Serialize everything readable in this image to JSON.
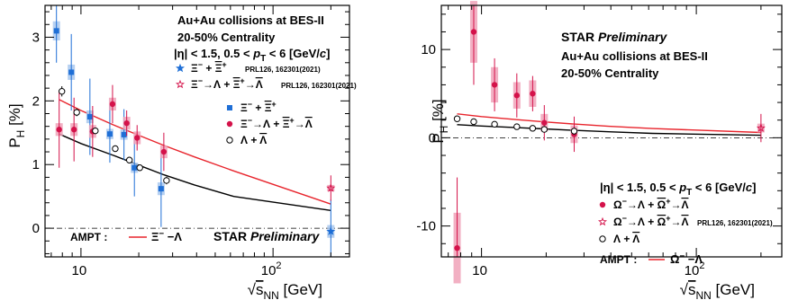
{
  "chart_data": [
    {
      "type": "scatter",
      "x_scale": "log",
      "xlim": [
        6.5,
        250
      ],
      "ylim": [
        -0.45,
        3.5
      ],
      "xlabel_pre": "√",
      "xlabel_s": "s",
      "xlabel_sub": "NN",
      "xlabel_unit": "[GeV]",
      "ylabel": "P",
      "ylabel_sub": "H",
      "ylabel_unit": "[%]",
      "x_ticks": [
        {
          "value": 10,
          "label": "10"
        },
        {
          "value": 100,
          "label": "10",
          "sup": "2"
        }
      ],
      "y_ticks": [
        0,
        1,
        2,
        3
      ],
      "zero_line": true,
      "header": {
        "line1": "Au+Au collisions at BES-II",
        "line2": "20-50% Centrality",
        "line3": "|η| < 1.5, 0.5 < pT < 6 [GeV/c]",
        "line3_parts": [
          "|η| < 1.5, 0.5 < ",
          "p",
          "T",
          " < 6 [GeV/",
          "c",
          "]"
        ]
      },
      "legend": [
        {
          "marker": "star-blue",
          "parts": [
            "Ξ",
            "−",
            " + ",
            "Ξ",
            "+"
          ],
          "ref": "PRL126, 162301(2021)"
        },
        {
          "marker": "star-red",
          "parts": [
            "Ξ",
            "−",
            "→Λ + ",
            "Ξ",
            "+",
            "→",
            "Λ"
          ],
          "ref": "PRL126, 162301(2021)"
        },
        {
          "marker": "square-blue",
          "parts": [
            "Ξ",
            "−",
            " + ",
            "Ξ",
            "+"
          ]
        },
        {
          "marker": "circle-red",
          "parts": [
            "Ξ",
            "−",
            "→Λ + ",
            "Ξ",
            "+",
            "→",
            "Λ"
          ]
        },
        {
          "marker": "circle-open",
          "parts": [
            "Λ + ",
            "Λ"
          ]
        }
      ],
      "ampt_label": "AMPT :",
      "ampt_legend": "Ξ− −Λ",
      "ampt_parts": [
        "Ξ",
        "−",
        " −Λ"
      ],
      "star_label": "STAR",
      "preliminary_label": "Preliminary",
      "series": [
        {
          "name": "Ξ− + Ξ̄+",
          "style": "square-blue",
          "x": [
            7.7,
            9.2,
            11.5,
            14.6,
            17.3,
            19.6,
            27
          ],
          "y": [
            3.1,
            2.45,
            1.75,
            1.48,
            1.47,
            0.95,
            0.62
          ],
          "err": [
            0.5,
            0.6,
            0.6,
            0.45,
            0.4,
            0.45,
            0.6
          ],
          "sys": [
            0.15,
            0.12,
            0.1,
            0.08,
            0.08,
            0.08,
            0.1
          ]
        },
        {
          "name": "Ξ−→Λ + Ξ̄+→Λ̄",
          "style": "circle-red",
          "x": [
            7.7,
            9.2,
            11.5,
            14.6,
            17.3,
            19.6,
            27
          ],
          "y": [
            1.55,
            1.55,
            1.52,
            1.95,
            1.65,
            1.42,
            1.2
          ],
          "err": [
            0.6,
            0.5,
            0.4,
            0.3,
            0.2,
            0.2,
            0.3
          ],
          "sys": [
            0.1,
            0.1,
            0.1,
            0.1,
            0.1,
            0.1,
            0.1
          ]
        },
        {
          "name": "Λ + Λ̄",
          "style": "circle-open",
          "x": [
            7.7,
            9.2,
            11.5,
            14.6,
            17.3,
            19.6,
            27
          ],
          "y": [
            2.15,
            1.82,
            1.53,
            1.25,
            1.07,
            0.95,
            0.75
          ],
          "err": [
            0.08,
            0.06,
            0.05,
            0.05,
            0.05,
            0.05,
            0.06
          ],
          "sys": [
            0.04,
            0.04,
            0.04,
            0.04,
            0.04,
            0.04,
            0.04
          ]
        },
        {
          "name": "Ξ− + Ξ̄+ (PRL126)",
          "style": "star-blue",
          "x": [
            200
          ],
          "y": [
            -0.05
          ],
          "err": [
            0.5
          ],
          "sys": [
            0.1
          ]
        },
        {
          "name": "Ξ−→Λ + Ξ̄+→Λ̄ (PRL126)",
          "style": "star-red",
          "x": [
            200
          ],
          "y": [
            0.63
          ],
          "err": [
            0.2
          ],
          "sys": [
            0.05
          ]
        }
      ],
      "curves": [
        {
          "name": "AMPT Ξ−",
          "color": "#e8242c",
          "x": [
            7.7,
            10,
            14.6,
            19.6,
            27,
            39,
            62.4,
            200
          ],
          "y": [
            2.02,
            1.85,
            1.63,
            1.47,
            1.3,
            1.12,
            0.9,
            0.38
          ]
        },
        {
          "name": "AMPT Λ",
          "color": "#000000",
          "x": [
            7.7,
            10,
            14.6,
            19.6,
            27,
            39,
            62.4,
            200
          ],
          "y": [
            1.48,
            1.33,
            1.15,
            1.0,
            0.84,
            0.68,
            0.5,
            0.28
          ]
        }
      ]
    },
    {
      "type": "scatter",
      "x_scale": "log",
      "xlim": [
        6.5,
        250
      ],
      "ylim": [
        -13.5,
        15
      ],
      "xlabel_pre": "√",
      "xlabel_s": "s",
      "xlabel_sub": "NN",
      "xlabel_unit": "[GeV]",
      "ylabel": "P",
      "ylabel_sub": "H",
      "ylabel_unit": "[%]",
      "x_ticks": [
        {
          "value": 10,
          "label": "10"
        },
        {
          "value": 100,
          "label": "10",
          "sup": "2"
        }
      ],
      "y_ticks": [
        -10,
        0,
        10
      ],
      "zero_line": true,
      "header": {
        "star": "STAR",
        "preliminary": "Preliminary",
        "line1": "Au+Au collisions at BES-II",
        "line2": "20-50% Centrality",
        "line3": "|η| < 1.5, 0.5 < pT < 6 [GeV/c]",
        "line3_parts": [
          "|η| < 1.5, 0.5 < ",
          "p",
          "T",
          " < 6 [GeV/",
          "c",
          "]"
        ]
      },
      "legend": [
        {
          "marker": "circle-red",
          "parts": [
            "Ω",
            "−",
            "→Λ + ",
            "Ω",
            "+",
            "→",
            "Λ"
          ]
        },
        {
          "marker": "star-red",
          "parts": [
            "Ω",
            "−",
            "→Λ + ",
            "Ω",
            "+",
            "→",
            "Λ"
          ],
          "ref": "PRL126, 162301(2021)"
        },
        {
          "marker": "circle-open",
          "parts": [
            "Λ + ",
            "Λ"
          ]
        }
      ],
      "ampt_label": "AMPT :",
      "ampt_legend": "Ω− −Λ",
      "ampt_parts": [
        "Ω",
        "−",
        " −Λ"
      ],
      "series": [
        {
          "name": "Ω−→Λ + Ω̄+→Λ̄",
          "style": "circle-red",
          "x": [
            7.7,
            9.2,
            11.5,
            14.6,
            17.3,
            19.6,
            27
          ],
          "y": [
            -12.5,
            12,
            6,
            4.8,
            5,
            1.7,
            0.4
          ],
          "err": [
            8,
            6,
            3,
            2.5,
            2,
            2,
            2
          ],
          "sys": [
            4,
            3.5,
            2,
            1.5,
            1.5,
            1,
            1
          ]
        },
        {
          "name": "Λ + Λ̄",
          "style": "circle-open",
          "x": [
            7.7,
            9.2,
            11.5,
            14.6,
            17.3,
            19.6,
            27
          ],
          "y": [
            2.15,
            1.82,
            1.53,
            1.25,
            1.07,
            0.95,
            0.75
          ],
          "err": [
            0.08,
            0.06,
            0.05,
            0.05,
            0.05,
            0.05,
            0.06
          ],
          "sys": [
            0.04,
            0.04,
            0.04,
            0.04,
            0.04,
            0.04,
            0.04
          ]
        },
        {
          "name": "Ω−→Λ + Ω̄+→Λ̄ (PRL126)",
          "style": "star-red",
          "x": [
            200
          ],
          "y": [
            1.1
          ],
          "err": [
            1.6
          ],
          "sys": [
            0.5
          ]
        }
      ],
      "curves": [
        {
          "name": "AMPT Ω−",
          "color": "#e8242c",
          "x": [
            7.7,
            10,
            14.6,
            19.6,
            27,
            39,
            62.4,
            200
          ],
          "y": [
            2.7,
            2.4,
            2.05,
            1.8,
            1.55,
            1.3,
            1.05,
            0.6
          ]
        },
        {
          "name": "AMPT Λ",
          "color": "#000000",
          "x": [
            7.7,
            10,
            14.6,
            19.6,
            27,
            39,
            62.4,
            200
          ],
          "y": [
            1.48,
            1.33,
            1.15,
            1.0,
            0.84,
            0.68,
            0.5,
            0.28
          ]
        }
      ]
    }
  ]
}
